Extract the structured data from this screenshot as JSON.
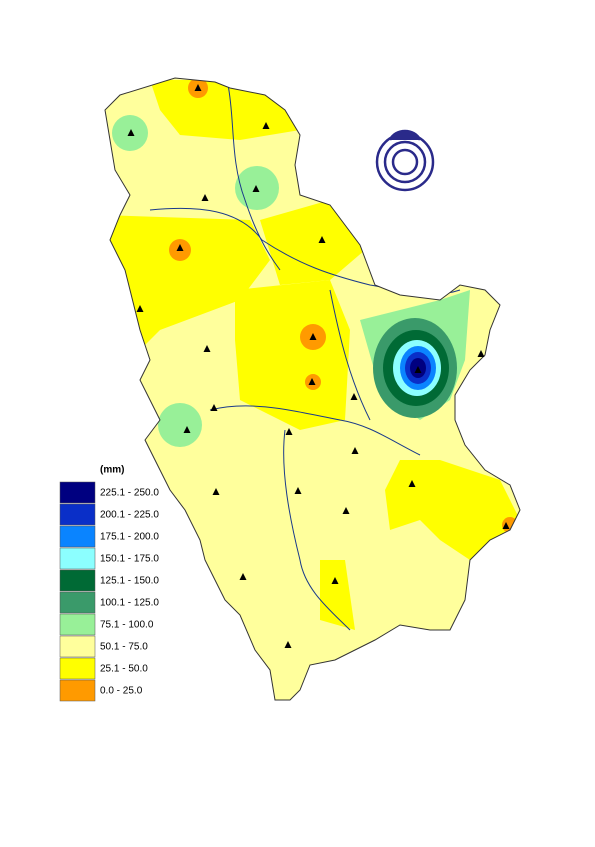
{
  "legend": {
    "unit": "(mm)",
    "items": [
      {
        "label": "225.1 - 250.0",
        "color": "#000080"
      },
      {
        "label": "200.1 - 225.0",
        "color": "#0a2fc8"
      },
      {
        "label": "175.1 - 200.0",
        "color": "#0a84ff"
      },
      {
        "label": "150.1 - 175.0",
        "color": "#8cffff"
      },
      {
        "label": "125.1 - 150.0",
        "color": "#006a35"
      },
      {
        "label": "100.1 - 125.0",
        "color": "#3a9a6a"
      },
      {
        "label": "75.1 - 100.0",
        "color": "#98f098"
      },
      {
        "label": "50.1 - 75.0",
        "color": "#ffff9c"
      },
      {
        "label": "25.1 - 50.0",
        "color": "#ffff00"
      },
      {
        "label": "0.0 - 25.0",
        "color": "#ff9a00"
      }
    ]
  }
}
